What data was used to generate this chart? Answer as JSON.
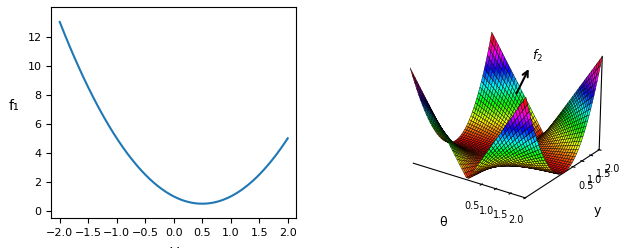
{
  "left_xlabel": "ω",
  "left_ylabel": "f₁",
  "left_xlim": [
    -2.15,
    2.15
  ],
  "left_ylim": [
    -0.5,
    14
  ],
  "left_xticks": [
    -2.0,
    -1.5,
    -1.0,
    -0.5,
    0.0,
    0.5,
    1.0,
    1.5,
    2.0
  ],
  "left_yticks": [
    0,
    2,
    4,
    6,
    8,
    10,
    12
  ],
  "line_color": "#1f77b4",
  "right_xlabel": "θ",
  "right_ylabel": "y",
  "f2_label": "$f_2$",
  "colormap": "hsv",
  "background_color": "#ffffff",
  "figsize": [
    6.4,
    2.48
  ],
  "dpi": 100,
  "theta_range": [
    -2,
    2
  ],
  "y_range": [
    -2,
    2
  ],
  "n_grid": 50,
  "elev": 22,
  "azim": -55
}
